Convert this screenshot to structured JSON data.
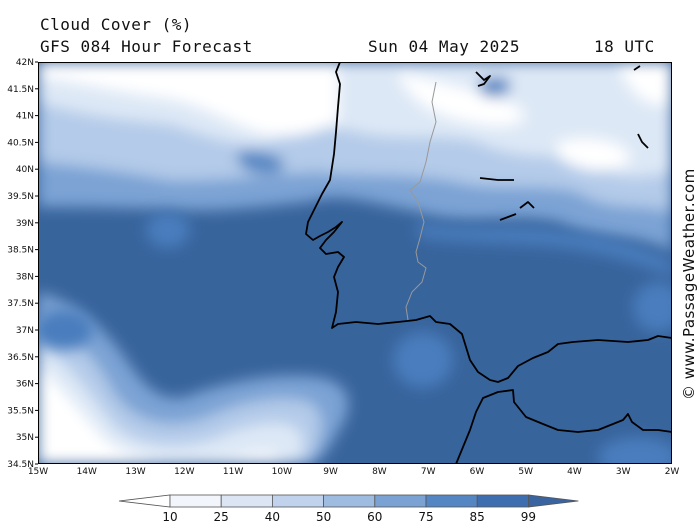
{
  "header": {
    "title": "Cloud Cover (%)",
    "model": "GFS 084 Hour Forecast",
    "date": "Sun 04 May 2025",
    "time": "18 UTC"
  },
  "watermark": "© www.PassageWeather.com",
  "axes": {
    "lat_labels": [
      "42N",
      "41.5N",
      "41N",
      "40.5N",
      "40N",
      "39.5N",
      "39N",
      "38.5N",
      "38N",
      "37.5N",
      "37N",
      "36.5N",
      "36N",
      "35.5N",
      "35N",
      "34.5N"
    ],
    "lon_labels": [
      "15W",
      "14W",
      "13W",
      "12W",
      "11W",
      "10W",
      "9W",
      "8W",
      "7W",
      "6W",
      "5W",
      "4W",
      "3W",
      "2W"
    ]
  },
  "colorbar": {
    "labels": [
      "10",
      "25",
      "40",
      "50",
      "60",
      "75",
      "85",
      "99"
    ],
    "colors": [
      "#ffffff",
      "#f2f5fb",
      "#dbe5f4",
      "#c0d2ec",
      "#9ebbe0",
      "#7aa2d2",
      "#5486c3",
      "#3d6fb0",
      "#3a64a0"
    ]
  },
  "colors": {
    "deep": "#38649c",
    "mid": "#4a7dbd",
    "light": "#7ba3d4",
    "pale": "#b4cbe9",
    "veryPale": "#dde8f6",
    "white": "#ffffff"
  }
}
